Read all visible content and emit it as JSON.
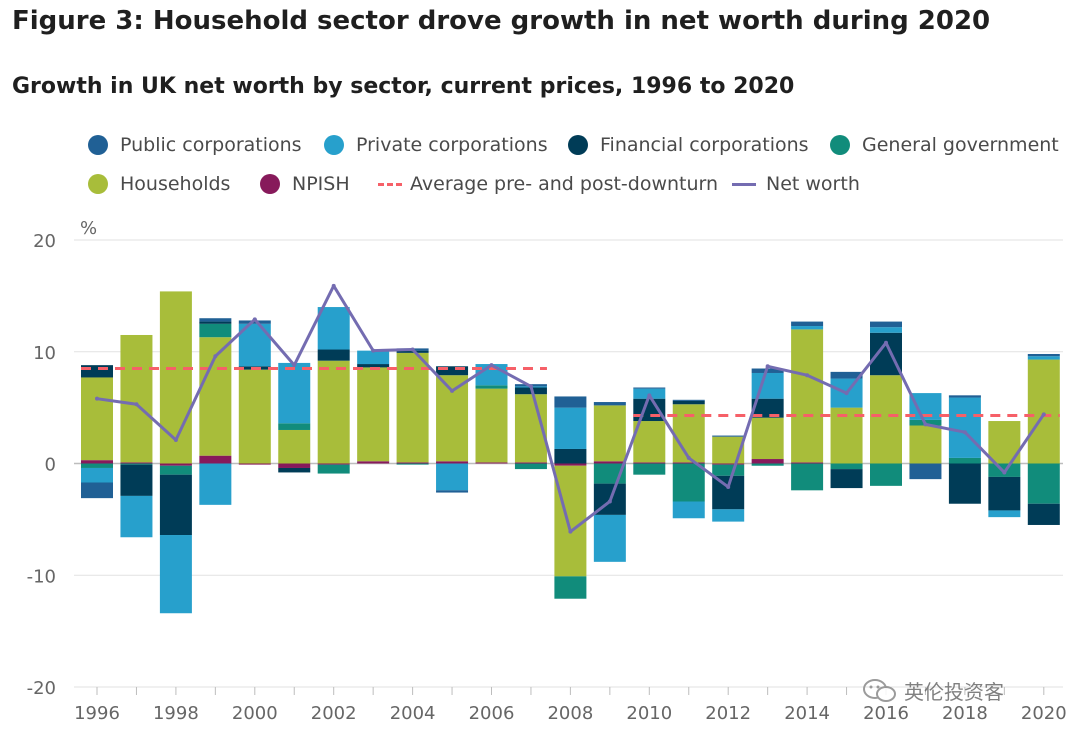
{
  "title": "Figure 3: Household sector drove growth in net worth during 2020",
  "chart_data": {
    "type": "bar",
    "subtitle": "Growth in UK net worth by sector, current prices, 1996 to 2020",
    "ylabel": "%",
    "ylim": [
      -20,
      20
    ],
    "yticks": [
      -20,
      -10,
      0,
      10,
      20
    ],
    "xticks": [
      "1996",
      "1998",
      "2000",
      "2002",
      "2004",
      "2006",
      "2008",
      "2010",
      "2012",
      "2014",
      "2016",
      "2018",
      "2020"
    ],
    "legend": [
      {
        "key": "public",
        "label": "Public corporations",
        "color": "#206095",
        "kind": "dot"
      },
      {
        "key": "private",
        "label": "Private corporations",
        "color": "#27a0cc",
        "kind": "dot"
      },
      {
        "key": "financial",
        "label": "Financial corporations",
        "color": "#003c57",
        "kind": "dot"
      },
      {
        "key": "government",
        "label": "General government",
        "color": "#118c7b",
        "kind": "dot"
      },
      {
        "key": "households",
        "label": "Households",
        "color": "#a8bd3a",
        "kind": "dot"
      },
      {
        "key": "npish",
        "label": "NPISH",
        "color": "#871a5b",
        "kind": "dot"
      },
      {
        "key": "average",
        "label": "Average pre- and post-downturn",
        "color": "#f66068",
        "kind": "dash"
      },
      {
        "key": "networth",
        "label": "Net worth",
        "color": "#746cb1",
        "kind": "line"
      }
    ],
    "categories": [
      1996,
      1997,
      1998,
      1999,
      2000,
      2001,
      2002,
      2003,
      2004,
      2005,
      2006,
      2007,
      2008,
      2009,
      2010,
      2011,
      2012,
      2013,
      2014,
      2015,
      2016,
      2017,
      2018,
      2019,
      2020
    ],
    "series": [
      {
        "name": "NPISH",
        "key": "npish",
        "values": [
          0.3,
          0.1,
          -0.2,
          0.7,
          -0.1,
          -0.4,
          -0.1,
          0.2,
          0.1,
          0.2,
          0.1,
          0.1,
          -0.2,
          0.2,
          0.1,
          0.1,
          -0.1,
          0.4,
          0.1,
          0.0,
          0.0,
          0.0,
          0.0,
          0.0,
          0.0
        ]
      },
      {
        "name": "Households",
        "key": "households",
        "values": [
          7.4,
          11.4,
          15.4,
          10.6,
          8.4,
          3.0,
          9.2,
          8.4,
          9.8,
          7.7,
          6.6,
          6.1,
          -9.9,
          5.0,
          3.7,
          5.2,
          2.4,
          3.7,
          11.9,
          5.0,
          7.9,
          3.4,
          0.0,
          3.8,
          9.3
        ]
      },
      {
        "name": "General government",
        "key": "government",
        "values": [
          -0.4,
          -0.1,
          -0.8,
          1.2,
          0.0,
          0.6,
          -0.8,
          0.0,
          -0.1,
          0.0,
          0.3,
          -0.5,
          -2.0,
          -1.8,
          -1.0,
          -3.4,
          -1.0,
          -0.2,
          -2.4,
          -0.5,
          -2.0,
          0.5,
          0.5,
          -1.2,
          -3.6
        ]
      },
      {
        "name": "Financial corporations",
        "key": "financial",
        "values": [
          1.1,
          -2.8,
          -5.4,
          0.2,
          0.3,
          -0.4,
          1.0,
          0.3,
          0.2,
          0.8,
          0.0,
          0.6,
          1.3,
          -2.8,
          2.0,
          0.3,
          -3.0,
          1.7,
          0.0,
          -1.7,
          3.8,
          0.0,
          -3.6,
          -3.0,
          -1.9
        ]
      },
      {
        "name": "Private corporations",
        "key": "private",
        "values": [
          -1.3,
          -3.7,
          -7.0,
          -3.7,
          3.8,
          5.4,
          3.8,
          1.2,
          0.0,
          -2.4,
          1.9,
          0.1,
          3.7,
          -4.2,
          0.9,
          -1.5,
          -1.1,
          2.3,
          0.3,
          2.6,
          0.5,
          2.4,
          5.4,
          -0.6,
          0.3
        ]
      },
      {
        "name": "Public corporations",
        "key": "public",
        "values": [
          -1.4,
          0.0,
          0.0,
          0.3,
          0.3,
          0.0,
          0.0,
          0.0,
          0.2,
          -0.2,
          0.0,
          0.2,
          1.0,
          0.3,
          0.1,
          0.1,
          0.1,
          0.4,
          0.4,
          0.6,
          0.5,
          -1.4,
          0.2,
          0.0,
          0.2
        ]
      }
    ],
    "net_worth": [
      5.8,
      5.3,
      2.1,
      9.6,
      12.9,
      8.8,
      15.9,
      10.1,
      10.2,
      6.5,
      8.8,
      6.9,
      -6.1,
      -3.4,
      6.1,
      0.5,
      -2.1,
      8.7,
      7.9,
      6.3,
      10.8,
      3.5,
      2.8,
      -0.8,
      4.4
    ],
    "averages": [
      {
        "label": "pre-downturn",
        "from": 1996,
        "to": 2007,
        "value": 8.5
      },
      {
        "label": "post-downturn",
        "from": 2010,
        "to": 2020,
        "value": 4.3
      }
    ]
  },
  "watermark": {
    "text": "英伦投资客",
    "icon": "wechat-icon"
  }
}
